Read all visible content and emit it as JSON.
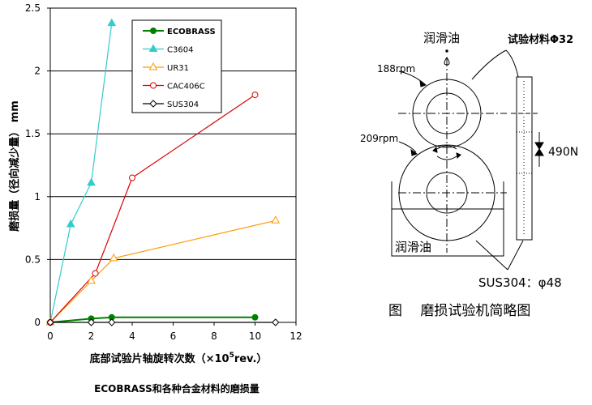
{
  "chart_data": {
    "type": "line",
    "title": "ECOBRASS和各种合金材料的磨损量",
    "xlabel": "底部试验片轴旋转次数（×10⁵rev.）",
    "xlabel_parts": {
      "main": "底部试验片轴旋转次数（×10",
      "sup": "5",
      "tail": "rev.）"
    },
    "ylabel": "磨损量（径向减少量） mm",
    "xlim": [
      0,
      12
    ],
    "ylim": [
      0,
      2.5
    ],
    "xticks": [
      0,
      2,
      4,
      6,
      8,
      10,
      12
    ],
    "yticks": [
      0,
      0.5,
      1,
      1.5,
      2,
      2.5
    ],
    "ytick_labels": [
      "0",
      "0.5",
      "1",
      "1.5",
      "2",
      "2.5"
    ],
    "grid": "horizontal",
    "legend_position": "top-center",
    "series": [
      {
        "name": "ECOBRASS",
        "color": "#008000",
        "marker": "filled-circle",
        "x": [
          0,
          2,
          3,
          10
        ],
        "y": [
          0,
          0.03,
          0.04,
          0.04
        ]
      },
      {
        "name": "C3604",
        "color": "#33cccc",
        "marker": "filled-triangle",
        "x": [
          0,
          1,
          2,
          3
        ],
        "y": [
          0,
          0.78,
          1.11,
          2.38
        ]
      },
      {
        "name": "UR31",
        "color": "#ff9900",
        "marker": "open-triangle",
        "x": [
          0,
          2,
          3.1,
          11
        ],
        "y": [
          0,
          0.33,
          0.51,
          0.81
        ]
      },
      {
        "name": "CAC406C",
        "color": "#dd0000",
        "marker": "open-circle",
        "x": [
          0,
          2.2,
          4,
          10
        ],
        "y": [
          0,
          0.39,
          1.15,
          1.81
        ]
      },
      {
        "name": "SUS304",
        "color": "#000000",
        "marker": "open-diamond",
        "x": [
          0,
          2,
          3,
          11
        ],
        "y": [
          0,
          0,
          0,
          0
        ]
      }
    ]
  },
  "diagram": {
    "lubricant_top": "润滑油",
    "test_material": "试验材料Φ32",
    "rpm_top": "188rpm",
    "rpm_bottom": "209rpm",
    "load": "490N",
    "lubricant_bath": "润滑油",
    "sus_label": "SUS304：φ48",
    "caption": "图　 磨损试验机简略图"
  }
}
